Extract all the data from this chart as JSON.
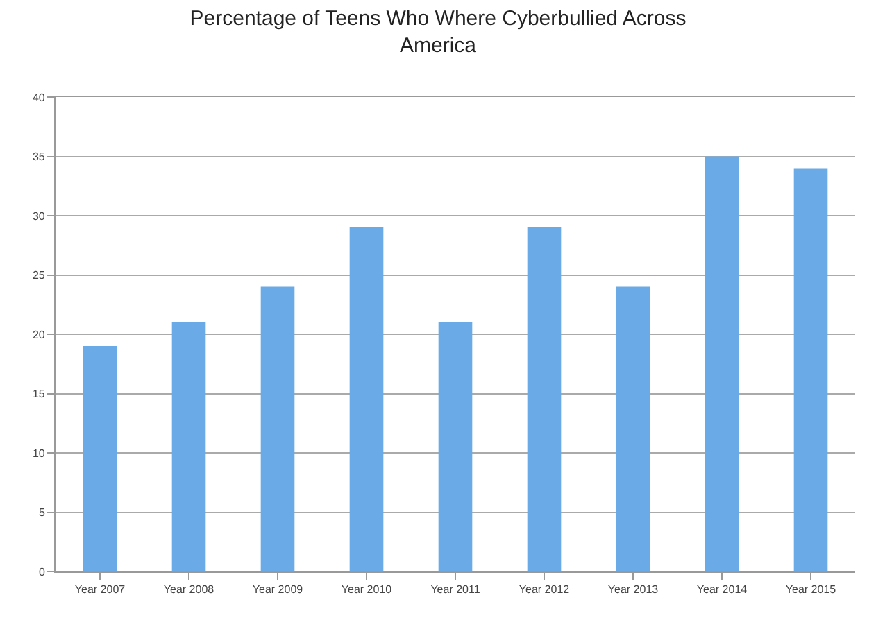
{
  "chart_data": {
    "type": "bar",
    "title": "Percentage of Teens Who Where Cyberbullied Across America",
    "categories": [
      "Year 2007",
      "Year 2008",
      "Year 2009",
      "Year 2010",
      "Year 2011",
      "Year 2012",
      "Year 2013",
      "Year 2014",
      "Year 2015"
    ],
    "values": [
      19,
      21,
      24,
      29,
      21,
      29,
      24,
      35,
      34
    ],
    "color": "#6aaae6",
    "ylim": [
      0,
      40
    ],
    "yticks": [
      0,
      5,
      10,
      15,
      20,
      25,
      30,
      35,
      40
    ],
    "grid": "y"
  }
}
